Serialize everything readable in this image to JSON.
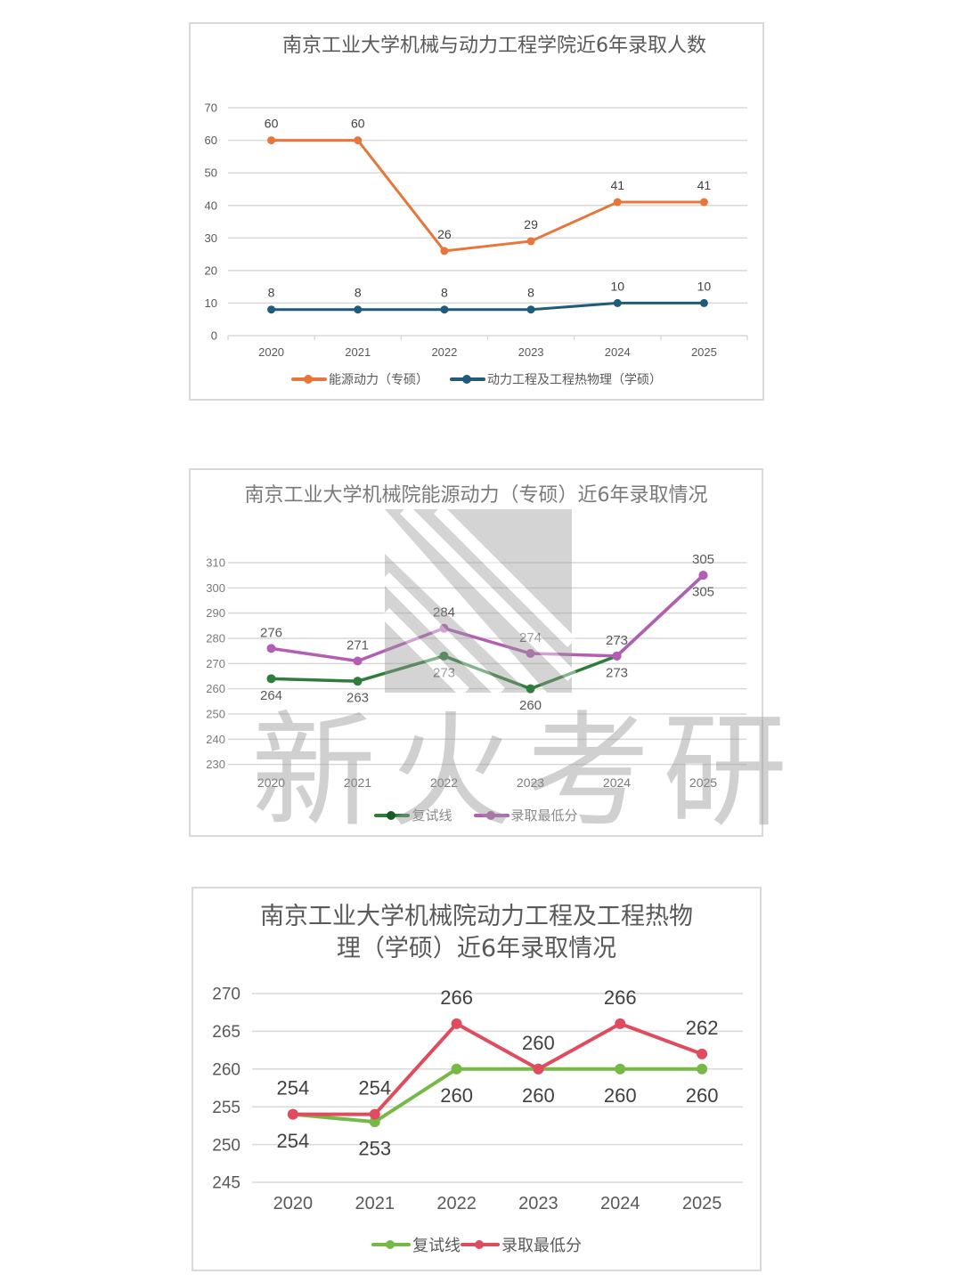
{
  "chart_data": [
    {
      "type": "line",
      "title": "南京工业大学机械与动力工程学院近6年录取人数",
      "categories": [
        "2020",
        "2021",
        "2022",
        "2023",
        "2024",
        "2025"
      ],
      "series": [
        {
          "name": "能源动力（专硕）",
          "color": "#E8763A",
          "values": [
            60,
            60,
            26,
            29,
            41,
            41
          ]
        },
        {
          "name": "动力工程及工程热物理（学硕）",
          "color": "#1F5C7A",
          "values": [
            8,
            8,
            8,
            8,
            10,
            10
          ]
        }
      ],
      "yticks": [
        "0",
        "10",
        "20",
        "30",
        "40",
        "50",
        "60",
        "70"
      ],
      "ylim": [
        0,
        70
      ],
      "xlabel": "",
      "ylabel": "",
      "grid": true,
      "legend_position": "bottom"
    },
    {
      "type": "line",
      "title": "南京工业大学机械院能源动力（专硕）近6年录取情况",
      "categories": [
        "2020",
        "2021",
        "2022",
        "2023",
        "2024",
        "2025"
      ],
      "series": [
        {
          "name": "复试线",
          "color": "#2E7D3A",
          "values": [
            264,
            263,
            273,
            260,
            273,
            305
          ]
        },
        {
          "name": "录取最低分",
          "color": "#B35DB5",
          "values": [
            276,
            271,
            284,
            274,
            273,
            305
          ]
        }
      ],
      "yticks": [
        "230",
        "240",
        "250",
        "260",
        "270",
        "280",
        "290",
        "300",
        "310"
      ],
      "ylim": [
        220,
        316
      ],
      "xlabel": "",
      "ylabel": "",
      "grid": true,
      "legend_position": "bottom",
      "watermark": "新火考研"
    },
    {
      "type": "line",
      "title": "南京工业大学机械院动力工程及工程热物理（学硕）近6年录取情况",
      "categories": [
        "2020",
        "2021",
        "2022",
        "2023",
        "2024",
        "2025"
      ],
      "series": [
        {
          "name": "复试线",
          "color": "#76B947",
          "values": [
            254,
            253,
            260,
            260,
            260,
            260
          ]
        },
        {
          "name": "录取最低分",
          "color": "#E04B5E",
          "values": [
            254,
            254,
            266,
            260,
            266,
            262
          ]
        }
      ],
      "yticks": [
        "245",
        "250",
        "255",
        "260",
        "265",
        "270"
      ],
      "ylim": [
        245,
        270
      ],
      "xlabel": "",
      "ylabel": "",
      "grid": true,
      "legend_position": "bottom"
    }
  ],
  "chart1": {
    "title": "南京工业大学机械与动力工程学院近6年录取人数",
    "legend": [
      "能源动力（专硕）",
      "动力工程及工程热物理（学硕）"
    ]
  },
  "chart2": {
    "title": "南京工业大学机械院能源动力（专硕）近6年录取情况",
    "legend": [
      "复试线",
      "录取最低分"
    ],
    "watermark": "新火考研"
  },
  "chart3": {
    "title": "南京工业大学机械院动力工程及工程热物理（学硕）近6年录取情况",
    "legend": [
      "复试线",
      "录取最低分"
    ]
  }
}
